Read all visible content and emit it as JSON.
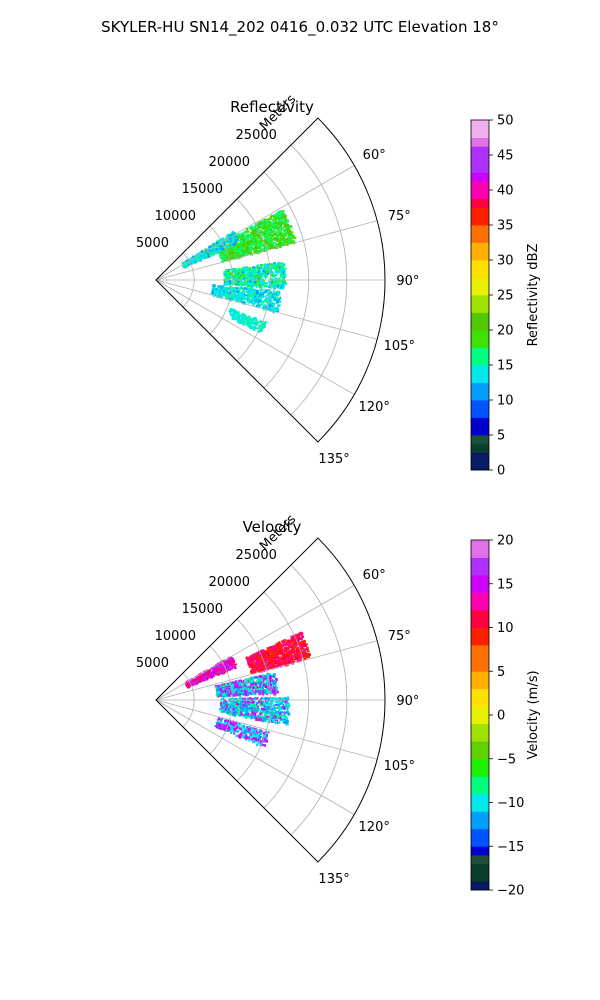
{
  "figure": {
    "title": "SKYLER-HU  SN14_202  0416_0.032 UTC Elevation 18°"
  },
  "chart_data": [
    {
      "type": "heatmap",
      "subtype": "polar-sector-ppi",
      "title": "Reflectivity",
      "radial_axis_label": "Meters",
      "radial_ticks": [
        "5000",
        "10000",
        "15000",
        "20000",
        "25000"
      ],
      "radial_tick_values": [
        5000,
        10000,
        15000,
        20000,
        25000
      ],
      "angle_ticks": [
        "60°",
        "75°",
        "90°",
        "105°",
        "120°",
        "135°"
      ],
      "angle_tick_values": [
        60,
        75,
        90,
        105,
        120,
        135
      ],
      "angle_range_deg": [
        45,
        135
      ],
      "radius_max": 30000,
      "grid": true,
      "colorbar": {
        "label": "Reflectivity dBZ",
        "min": 0,
        "max": 50,
        "ticks": [
          "0",
          "5",
          "10",
          "15",
          "20",
          "25",
          "30",
          "35",
          "40",
          "45",
          "50"
        ],
        "tick_values": [
          0,
          5,
          10,
          15,
          20,
          25,
          30,
          35,
          40,
          45,
          50
        ],
        "colormap": [
          {
            "v": 0,
            "c": "#0b1a66"
          },
          {
            "v": 2,
            "c": "#0b3d2b"
          },
          {
            "v": 4,
            "c": "#1f4f3a"
          },
          {
            "v": 5,
            "c": "#0000cc"
          },
          {
            "v": 7,
            "c": "#0055ff"
          },
          {
            "v": 10,
            "c": "#00a0ff"
          },
          {
            "v": 12,
            "c": "#00e8e8"
          },
          {
            "v": 15,
            "c": "#00ff80"
          },
          {
            "v": 18,
            "c": "#40e000"
          },
          {
            "v": 20,
            "c": "#50c800"
          },
          {
            "v": 22,
            "c": "#a0e000"
          },
          {
            "v": 25,
            "c": "#e8f000"
          },
          {
            "v": 28,
            "c": "#ffe000"
          },
          {
            "v": 30,
            "c": "#ffb000"
          },
          {
            "v": 32,
            "c": "#ff7000"
          },
          {
            "v": 35,
            "c": "#ff2000"
          },
          {
            "v": 37,
            "c": "#ff0040"
          },
          {
            "v": 39,
            "c": "#ff00b0"
          },
          {
            "v": 41,
            "c": "#d000ff"
          },
          {
            "v": 43,
            "c": "#b030ff"
          },
          {
            "v": 46,
            "c": "#e070e8"
          },
          {
            "v": 48,
            "c": "#f0b0f0"
          },
          {
            "v": 50,
            "c": "#fff0ff"
          }
        ]
      }
    },
    {
      "type": "heatmap",
      "subtype": "polar-sector-ppi",
      "title": "Velocity",
      "radial_axis_label": "Meters",
      "radial_ticks": [
        "5000",
        "10000",
        "15000",
        "20000",
        "25000"
      ],
      "radial_tick_values": [
        5000,
        10000,
        15000,
        20000,
        25000
      ],
      "angle_ticks": [
        "60°",
        "75°",
        "90°",
        "105°",
        "120°",
        "135°"
      ],
      "angle_tick_values": [
        60,
        75,
        90,
        105,
        120,
        135
      ],
      "angle_range_deg": [
        45,
        135
      ],
      "radius_max": 30000,
      "grid": true,
      "colorbar": {
        "label": "Velocity (m/s)",
        "min": -20,
        "max": 20,
        "ticks": [
          "−20",
          "−15",
          "−10",
          "−5",
          "0",
          "5",
          "10",
          "15",
          "20"
        ],
        "tick_values": [
          -20,
          -15,
          -10,
          -5,
          0,
          5,
          10,
          15,
          20
        ],
        "colormap": [
          {
            "v": -20,
            "c": "#0b1a66"
          },
          {
            "v": -18.5,
            "c": "#0b3d2b"
          },
          {
            "v": -17,
            "c": "#1f4f3a"
          },
          {
            "v": -16,
            "c": "#0000cc"
          },
          {
            "v": -14.5,
            "c": "#0055ff"
          },
          {
            "v": -13,
            "c": "#00a0ff"
          },
          {
            "v": -11,
            "c": "#00e8e8"
          },
          {
            "v": -9,
            "c": "#00ff80"
          },
          {
            "v": -7,
            "c": "#20f000"
          },
          {
            "v": -5,
            "c": "#60d000"
          },
          {
            "v": -3,
            "c": "#a0e000"
          },
          {
            "v": -1,
            "c": "#e8f000"
          },
          {
            "v": 1,
            "c": "#ffe000"
          },
          {
            "v": 3,
            "c": "#ffb000"
          },
          {
            "v": 5,
            "c": "#ff7000"
          },
          {
            "v": 8,
            "c": "#ff2000"
          },
          {
            "v": 10,
            "c": "#ff0040"
          },
          {
            "v": 12,
            "c": "#ff00b0"
          },
          {
            "v": 14,
            "c": "#d000ff"
          },
          {
            "v": 16,
            "c": "#b030ff"
          },
          {
            "v": 18,
            "c": "#e070e8"
          },
          {
            "v": 20,
            "c": "#fff0ff"
          }
        ]
      }
    }
  ]
}
